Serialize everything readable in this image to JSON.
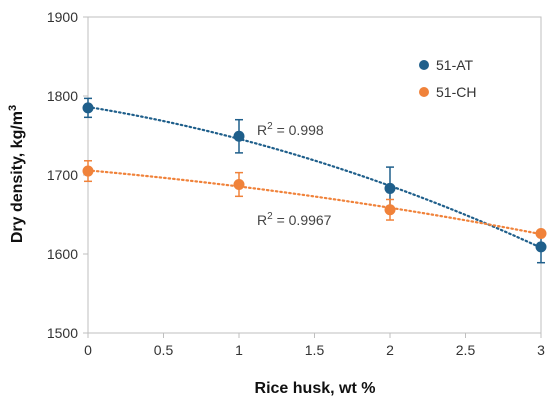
{
  "chart_data": {
    "type": "scatter",
    "xlabel": "Rice husk, wt %",
    "ylabel_main": "Dry density, kg/m",
    "ylabel_sup": "3",
    "xlim": [
      0,
      3
    ],
    "ylim": [
      1500,
      1900
    ],
    "xticks": [
      "0",
      "0.5",
      "1",
      "1.5",
      "2",
      "2.5",
      "3"
    ],
    "yticks": [
      "1500",
      "1600",
      "1700",
      "1800",
      "1900"
    ],
    "grid": false,
    "legend_position": "top-right",
    "series": [
      {
        "name": "51-AT",
        "color": "#1f5f8b",
        "x": [
          0,
          1,
          2,
          3
        ],
        "y": [
          1785,
          1749,
          1683,
          1609
        ],
        "err": [
          12,
          21,
          27,
          20
        ],
        "trendline": "dotted",
        "r2_label": "R",
        "r2_sup": "2",
        "r2_value": " = 0.998"
      },
      {
        "name": "51-CH",
        "color": "#f0823a",
        "x": [
          0,
          1,
          2,
          3
        ],
        "y": [
          1705,
          1688,
          1656,
          1626
        ],
        "err": [
          13,
          15,
          13,
          0
        ],
        "trendline": "dotted",
        "r2_label": "R",
        "r2_sup": "2",
        "r2_value": " = 0.9967"
      }
    ]
  }
}
